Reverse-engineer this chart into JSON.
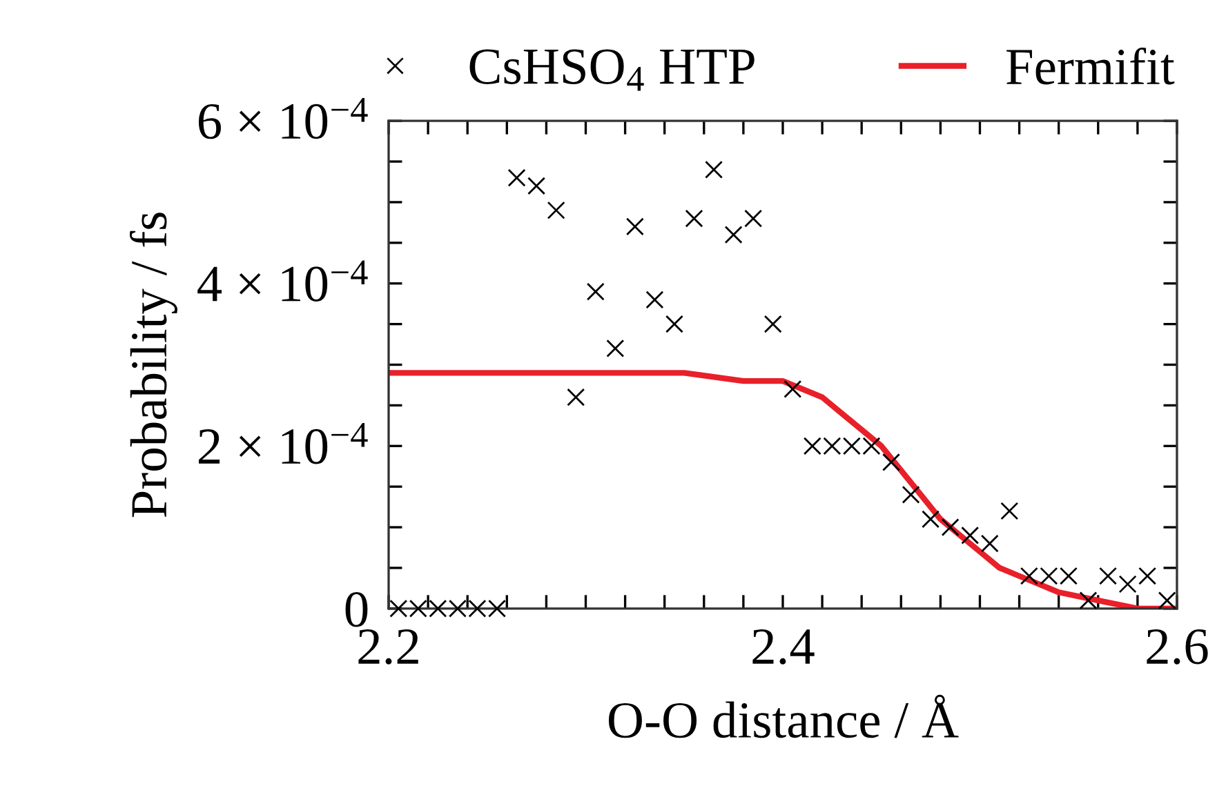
{
  "chart_data": {
    "type": "scatter",
    "xlabel": "O-O distance / Å",
    "ylabel": "Probability / fs",
    "series": [
      {
        "name": "CsHSO$_{4}$ HTP",
        "color": "#000000",
        "marker": "cross",
        "x": [
          2.205,
          2.215,
          2.225,
          2.235,
          2.245,
          2.255,
          2.265,
          2.275,
          2.285,
          2.295,
          2.305,
          2.315,
          2.325,
          2.335,
          2.345,
          2.355,
          2.365,
          2.375,
          2.385,
          2.395,
          2.405,
          2.415,
          2.425,
          2.435,
          2.445,
          2.455,
          2.465,
          2.475,
          2.485,
          2.495,
          2.505,
          2.515,
          2.525,
          2.535,
          2.545,
          2.555,
          2.565,
          2.575,
          2.585,
          2.595
        ],
        "values": [
          0,
          0,
          0,
          0,
          0,
          0,
          0.00053,
          0.00052,
          0.00049,
          0.00026,
          0.00039,
          0.00032,
          0.00047,
          0.00038,
          0.00035,
          0.00048,
          0.00054,
          0.00046,
          0.00048,
          0.00035,
          0.00027,
          0.0002,
          0.0002,
          0.0002,
          0.0002,
          0.00018,
          0.00014,
          0.00011,
          0.0001,
          9e-05,
          8e-05,
          0.00012,
          4e-05,
          4e-05,
          4e-05,
          1e-05,
          4e-05,
          3e-05,
          4e-05,
          1e-05
        ]
      },
      {
        "name": "Fermifit",
        "type": "line",
        "color": "#e8202a",
        "line_style": "solid",
        "x": [
          2.2,
          2.3,
          2.35,
          2.38,
          2.4,
          2.41,
          2.42,
          2.43,
          2.44,
          2.45,
          2.46,
          2.47,
          2.48,
          2.49,
          2.5,
          2.51,
          2.52,
          2.53,
          2.54,
          2.56,
          2.58,
          2.6
        ],
        "values": [
          0.00029,
          0.00029,
          0.00029,
          0.00028,
          0.00028,
          0.00027,
          0.00026,
          0.00024,
          0.00022,
          0.0002,
          0.00017,
          0.00014,
          0.00011,
          9e-05,
          7e-05,
          5e-05,
          4e-05,
          3e-05,
          2e-05,
          1e-05,
          0,
          0
        ]
      }
    ],
    "xlim": [
      2.2,
      2.6
    ],
    "xticks": [
      {
        "value": 2.2,
        "label": "2.2"
      },
      {
        "value": 2.22,
        "label": null
      },
      {
        "value": 2.24,
        "label": null
      },
      {
        "value": 2.26,
        "label": null
      },
      {
        "value": 2.28,
        "label": null
      },
      {
        "value": 2.3,
        "label": null
      },
      {
        "value": 2.32,
        "label": null
      },
      {
        "value": 2.34,
        "label": null
      },
      {
        "value": 2.36,
        "label": null
      },
      {
        "value": 2.38,
        "label": null
      },
      {
        "value": 2.4,
        "label": "2.4"
      },
      {
        "value": 2.42,
        "label": null
      },
      {
        "value": 2.44,
        "label": null
      },
      {
        "value": 2.46,
        "label": null
      },
      {
        "value": 2.48,
        "label": null
      },
      {
        "value": 2.5,
        "label": null
      },
      {
        "value": 2.52,
        "label": null
      },
      {
        "value": 2.54,
        "label": null
      },
      {
        "value": 2.56,
        "label": null
      },
      {
        "value": 2.58,
        "label": null
      },
      {
        "value": 2.6,
        "label": "2.6"
      }
    ],
    "ylim": [
      0,
      0.0006
    ],
    "yticks": [
      {
        "value": 0,
        "label": "0"
      },
      {
        "value": 5e-05,
        "label": null
      },
      {
        "value": 0.0001,
        "label": null
      },
      {
        "value": 0.00015,
        "label": null
      },
      {
        "value": 0.0002,
        "label": "2 × 10$^{−4}$"
      },
      {
        "value": 0.00025,
        "label": null
      },
      {
        "value": 0.0003,
        "label": null
      },
      {
        "value": 0.00035,
        "label": null
      },
      {
        "value": 0.0004,
        "label": "4 × 10$^{−4}$"
      },
      {
        "value": 0.00045,
        "label": null
      },
      {
        "value": 0.0005,
        "label": null
      },
      {
        "value": 0.00055,
        "label": null
      },
      {
        "value": 0.0006,
        "label": "6 × 10$^{−4}$"
      }
    ],
    "grid": false,
    "legend": "top"
  }
}
